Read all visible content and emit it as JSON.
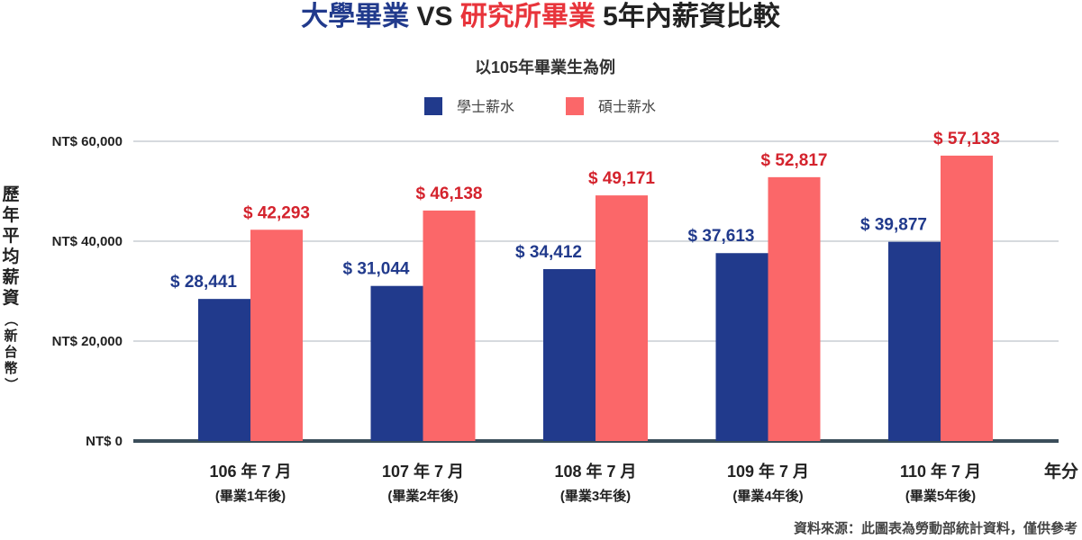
{
  "chart_data": {
    "type": "bar",
    "title": {
      "part1": "大學畢業",
      "vs": " VS ",
      "part2": "研究所畢業",
      "part3": " 5年內薪資比較"
    },
    "subtitle": "以105年畢業生為例",
    "ylabel": "歷年平均薪資",
    "ylabel_unit": "（新台幣）",
    "xlabel": "年分",
    "ylim": [
      0,
      60000
    ],
    "yticks": [
      {
        "value": 0,
        "label": "NT$ 0"
      },
      {
        "value": 20000,
        "label": "NT$ 20,000"
      },
      {
        "value": 40000,
        "label": "NT$ 40,000"
      },
      {
        "value": 60000,
        "label": "NT$ 60,000"
      }
    ],
    "categories": [
      {
        "label": "106 年 7 月",
        "sub": "(畢業1年後)"
      },
      {
        "label": "107 年 7 月",
        "sub": "(畢業2年後)"
      },
      {
        "label": "108 年 7 月",
        "sub": "(畢業3年後)"
      },
      {
        "label": "109 年 7 月",
        "sub": "(畢業4年後)"
      },
      {
        "label": "110 年 7 月",
        "sub": "(畢業5年後)"
      }
    ],
    "series": [
      {
        "name": "學士薪水",
        "color": "#213a8c",
        "label_color": "#213a8c",
        "values": [
          28441,
          31044,
          34412,
          37613,
          39877
        ],
        "labels": [
          "$ 28,441",
          "$ 31,044",
          "$ 34,412",
          "$ 37,613",
          "$ 39,877"
        ]
      },
      {
        "name": "碩士薪水",
        "color": "#fb6769",
        "label_color": "#d4232d",
        "values": [
          42293,
          46138,
          49171,
          52817,
          57133
        ],
        "labels": [
          "$ 42,293",
          "$ 46,138",
          "$ 49,171",
          "$ 52,817",
          "$ 57,133"
        ]
      }
    ],
    "grid": true,
    "legend_position": "top-center",
    "source": "資料來源：此圖表為勞動部統計資料，僅供參考",
    "colors": {
      "title_blue": "#213a8c",
      "title_red": "#e8343b",
      "title_black": "#222222",
      "axis": "#3b4e5a",
      "grid": "#c9ced3"
    }
  }
}
